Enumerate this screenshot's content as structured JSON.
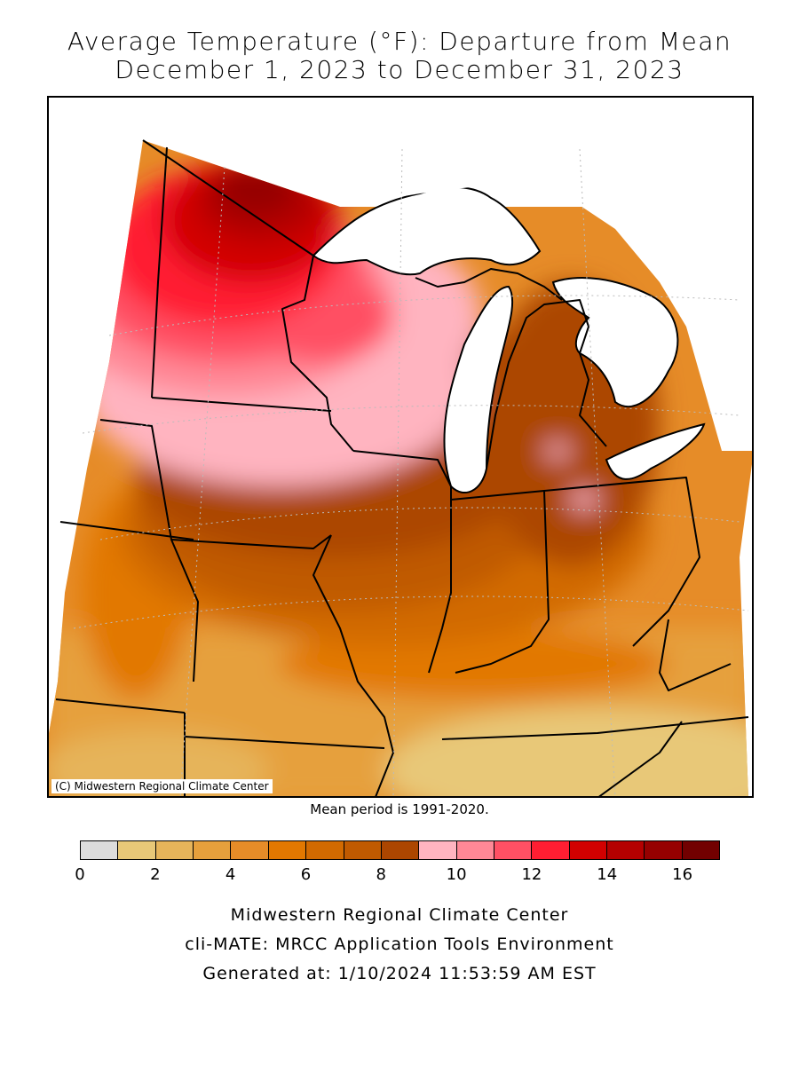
{
  "title_line1": "Average Temperature (°F): Departure from Mean",
  "title_line2": "December 1, 2023 to December 31, 2023",
  "map_credit": "(C) Midwestern Regional Climate Center",
  "mean_note": "Mean period is 1991-2020.",
  "legend": {
    "colors": [
      "#dcdcdc",
      "#e8c878",
      "#e6b45a",
      "#e6a03c",
      "#e68c28",
      "#e27800",
      "#d26a00",
      "#c05a00",
      "#ac4600",
      "#ffb4c0",
      "#ff8896",
      "#ff5064",
      "#ff1e32",
      "#d20000",
      "#b40000",
      "#960000",
      "#720000"
    ],
    "tick_labels": [
      "0",
      "2",
      "4",
      "6",
      "8",
      "10",
      "12",
      "14",
      "16"
    ],
    "tick_values": [
      0,
      2,
      4,
      6,
      8,
      10,
      12,
      14,
      16
    ],
    "max_value": 17
  },
  "footer": {
    "line1": "Midwestern Regional Climate Center",
    "line2": "cli-MATE: MRCC Application Tools Environment",
    "line3": "Generated at: 1/10/2024 11:53:59 AM EST"
  }
}
